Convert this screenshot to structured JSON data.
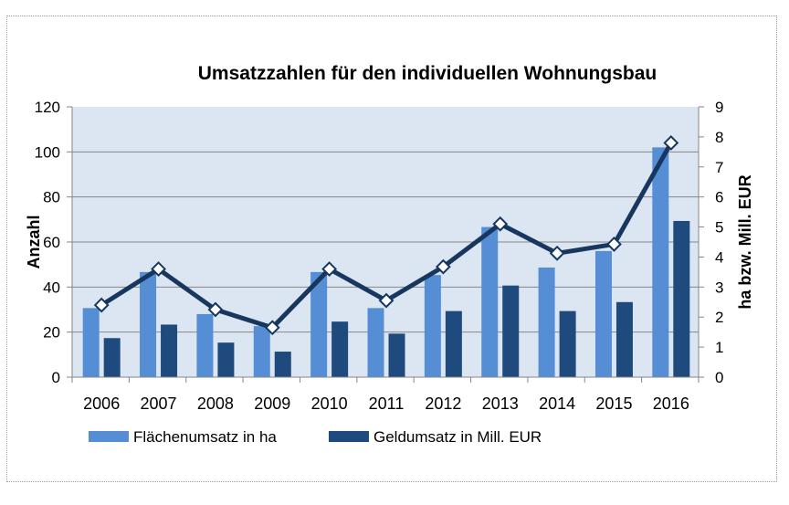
{
  "chart_data": {
    "type": "bar",
    "title": "Umsatzzahlen für den individuellen Wohnungsbau",
    "categories": [
      "2006",
      "2007",
      "2008",
      "2009",
      "2010",
      "2011",
      "2012",
      "2013",
      "2014",
      "2015",
      "2016"
    ],
    "xlabel": "",
    "ylabel_left": "Anzahl",
    "ylabel_right": "ha bzw. Mill. EUR",
    "ylim_left": [
      0,
      120
    ],
    "yticks_left": [
      0,
      20,
      40,
      60,
      80,
      100,
      120
    ],
    "ylim_right": [
      0,
      9
    ],
    "yticks_right": [
      0,
      1,
      2,
      3,
      4,
      5,
      6,
      7,
      8,
      9
    ],
    "grid": true,
    "legend_position": "bottom",
    "series": [
      {
        "name": "Flächenumsatz in ha",
        "type": "bar",
        "axis": "right",
        "color": "#558ED5",
        "values": [
          2.3,
          3.5,
          2.1,
          1.7,
          3.5,
          2.3,
          3.4,
          5.0,
          3.65,
          4.2,
          7.65
        ]
      },
      {
        "name": "Geldumsatz in Mill. EUR",
        "type": "bar",
        "axis": "right",
        "color": "#1F4A7E",
        "values": [
          1.3,
          1.75,
          1.15,
          0.85,
          1.85,
          1.45,
          2.2,
          3.05,
          2.2,
          2.5,
          5.2
        ]
      },
      {
        "name": "Anzahl",
        "type": "line",
        "axis": "left",
        "color": "#17375E",
        "in_legend": false,
        "values": [
          32,
          48,
          30,
          22,
          48,
          34,
          49,
          68,
          55,
          59,
          104
        ]
      }
    ]
  }
}
